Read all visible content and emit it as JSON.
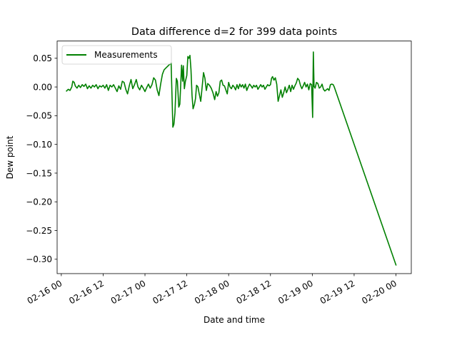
{
  "chart_data": {
    "type": "line",
    "title": "Data difference d=2 for 399 data points",
    "xlabel": "Date and time",
    "ylabel": "Dew point",
    "legend": {
      "placement": "top-left",
      "entries": [
        "Measurements"
      ]
    },
    "grid": false,
    "x_unit": "hours",
    "xlim": [
      -1.2,
      100.4
    ],
    "ylim": [
      -0.325,
      0.08
    ],
    "x_ticks": [
      {
        "value": 0,
        "label": "02-16 00"
      },
      {
        "value": 12,
        "label": "02-16 12"
      },
      {
        "value": 24,
        "label": "02-17 00"
      },
      {
        "value": 36,
        "label": "02-17 12"
      },
      {
        "value": 48,
        "label": "02-18 00"
      },
      {
        "value": 60,
        "label": "02-18 12"
      },
      {
        "value": 72,
        "label": "02-19 00"
      },
      {
        "value": 84,
        "label": "02-19 12"
      },
      {
        "value": 96,
        "label": "02-20 00"
      }
    ],
    "y_ticks": [
      {
        "value": 0.05,
        "label": "0.05"
      },
      {
        "value": 0.0,
        "label": "0.00"
      },
      {
        "value": -0.05,
        "label": "−0.05"
      },
      {
        "value": -0.1,
        "label": "−0.10"
      },
      {
        "value": -0.15,
        "label": "−0.15"
      },
      {
        "value": -0.2,
        "label": "−0.20"
      },
      {
        "value": -0.25,
        "label": "−0.25"
      },
      {
        "value": -0.3,
        "label": "−0.30"
      }
    ],
    "series": [
      {
        "name": "Measurements",
        "color": "#008000",
        "points": [
          [
            1.5,
            -0.007
          ],
          [
            2.0,
            -0.004
          ],
          [
            2.5,
            -0.006
          ],
          [
            3.0,
            0.0
          ],
          [
            3.3,
            0.01
          ],
          [
            3.7,
            0.008
          ],
          [
            4.0,
            0.002
          ],
          [
            4.5,
            -0.002
          ],
          [
            5.0,
            0.003
          ],
          [
            5.5,
            -0.001
          ],
          [
            6.0,
            0.004
          ],
          [
            6.5,
            0.001
          ],
          [
            7.0,
            0.005
          ],
          [
            7.5,
            -0.003
          ],
          [
            8.0,
            0.002
          ],
          [
            8.5,
            -0.002
          ],
          [
            9.0,
            0.003
          ],
          [
            9.5,
            0.0
          ],
          [
            10.0,
            0.004
          ],
          [
            10.5,
            -0.003
          ],
          [
            11.0,
            0.002
          ],
          [
            11.5,
            0.0
          ],
          [
            12.0,
            0.003
          ],
          [
            12.5,
            -0.002
          ],
          [
            13.0,
            0.004
          ],
          [
            13.5,
            -0.006
          ],
          [
            14.0,
            0.003
          ],
          [
            14.5,
            0.0
          ],
          [
            15.0,
            0.004
          ],
          [
            15.5,
            -0.002
          ],
          [
            16.0,
            -0.008
          ],
          [
            16.5,
            0.002
          ],
          [
            17.0,
            -0.004
          ],
          [
            17.5,
            0.01
          ],
          [
            18.0,
            0.008
          ],
          [
            18.5,
            -0.004
          ],
          [
            19.0,
            -0.012
          ],
          [
            19.5,
            0.002
          ],
          [
            20.0,
            0.013
          ],
          [
            20.5,
            -0.003
          ],
          [
            21.0,
            0.004
          ],
          [
            21.5,
            0.013
          ],
          [
            22.0,
            0.0
          ],
          [
            22.5,
            -0.005
          ],
          [
            23.0,
            0.003
          ],
          [
            23.5,
            -0.002
          ],
          [
            24.0,
            -0.008
          ],
          [
            24.5,
            -0.001
          ],
          [
            25.0,
            0.005
          ],
          [
            25.5,
            -0.002
          ],
          [
            26.0,
            0.004
          ],
          [
            26.5,
            0.016
          ],
          [
            27.0,
            0.012
          ],
          [
            27.5,
            -0.005
          ],
          [
            28.0,
            -0.015
          ],
          [
            28.5,
            0.005
          ],
          [
            29.0,
            0.022
          ],
          [
            29.5,
            0.03
          ],
          [
            30.0,
            0.033
          ],
          [
            30.5,
            0.036
          ],
          [
            31.0,
            0.039
          ],
          [
            31.5,
            0.042
          ],
          [
            32.0,
            -0.07
          ],
          [
            32.3,
            -0.065
          ],
          [
            32.6,
            -0.045
          ],
          [
            33.0,
            0.015
          ],
          [
            33.3,
            0.01
          ],
          [
            33.7,
            -0.035
          ],
          [
            34.0,
            -0.03
          ],
          [
            34.2,
            -0.003
          ],
          [
            34.5,
            0.038
          ],
          [
            34.8,
            0.01
          ],
          [
            35.0,
            0.037
          ],
          [
            35.3,
            -0.003
          ],
          [
            35.6,
            0.01
          ],
          [
            36.0,
            0.02
          ],
          [
            36.3,
            0.053
          ],
          [
            36.6,
            0.05
          ],
          [
            36.9,
            0.055
          ],
          [
            37.2,
            0.03
          ],
          [
            37.5,
            -0.015
          ],
          [
            37.8,
            -0.038
          ],
          [
            38.2,
            -0.03
          ],
          [
            38.5,
            -0.02
          ],
          [
            38.8,
            0.003
          ],
          [
            39.2,
            0.0
          ],
          [
            39.5,
            -0.01
          ],
          [
            40.0,
            -0.025
          ],
          [
            40.4,
            0.0
          ],
          [
            40.8,
            0.025
          ],
          [
            41.2,
            0.015
          ],
          [
            41.6,
            -0.006
          ],
          [
            42.0,
            0.006
          ],
          [
            42.5,
            0.003
          ],
          [
            43.0,
            -0.002
          ],
          [
            43.5,
            -0.01
          ],
          [
            44.0,
            -0.022
          ],
          [
            44.4,
            -0.008
          ],
          [
            44.8,
            -0.016
          ],
          [
            45.2,
            -0.01
          ],
          [
            45.6,
            0.01
          ],
          [
            46.0,
            0.012
          ],
          [
            46.4,
            0.003
          ],
          [
            46.8,
            0.002
          ],
          [
            47.2,
            -0.005
          ],
          [
            47.6,
            -0.012
          ],
          [
            48.0,
            0.008
          ],
          [
            48.4,
            0.0
          ],
          [
            48.8,
            -0.003
          ],
          [
            49.2,
            0.003
          ],
          [
            49.6,
            0.0
          ],
          [
            50.0,
            -0.005
          ],
          [
            50.4,
            0.004
          ],
          [
            50.8,
            -0.003
          ],
          [
            51.2,
            0.005
          ],
          [
            51.6,
            0.0
          ],
          [
            52.0,
            0.004
          ],
          [
            52.4,
            -0.002
          ],
          [
            52.8,
            0.005
          ],
          [
            53.2,
            -0.006
          ],
          [
            53.6,
            0.0
          ],
          [
            54.0,
            0.005
          ],
          [
            54.4,
            0.002
          ],
          [
            54.8,
            -0.002
          ],
          [
            55.2,
            0.003
          ],
          [
            55.6,
            0.0
          ],
          [
            56.0,
            0.003
          ],
          [
            56.4,
            -0.004
          ],
          [
            56.8,
            0.0
          ],
          [
            57.2,
            0.004
          ],
          [
            57.6,
            0.0
          ],
          [
            58.0,
            0.003
          ],
          [
            58.4,
            -0.004
          ],
          [
            58.8,
            0.0
          ],
          [
            59.2,
            0.004
          ],
          [
            59.6,
            0.002
          ],
          [
            60.0,
            0.004
          ],
          [
            60.3,
            0.015
          ],
          [
            60.6,
            0.018
          ],
          [
            61.0,
            0.012
          ],
          [
            61.4,
            0.016
          ],
          [
            61.8,
            0.005
          ],
          [
            62.2,
            -0.025
          ],
          [
            62.6,
            -0.015
          ],
          [
            63.0,
            -0.005
          ],
          [
            63.4,
            -0.018
          ],
          [
            63.8,
            -0.01
          ],
          [
            64.2,
            0.0
          ],
          [
            64.6,
            -0.01
          ],
          [
            65.0,
            -0.004
          ],
          [
            65.4,
            0.003
          ],
          [
            65.8,
            -0.008
          ],
          [
            66.2,
            0.003
          ],
          [
            66.6,
            -0.004
          ],
          [
            67.0,
            0.002
          ],
          [
            67.4,
            0.007
          ],
          [
            67.8,
            0.015
          ],
          [
            68.2,
            0.012
          ],
          [
            68.6,
            0.003
          ],
          [
            69.0,
            -0.003
          ],
          [
            69.4,
            0.002
          ],
          [
            69.8,
            0.008
          ],
          [
            70.2,
            0.0
          ],
          [
            70.6,
            0.005
          ],
          [
            71.0,
            -0.005
          ],
          [
            71.4,
            0.006
          ],
          [
            71.8,
            0.004
          ],
          [
            72.1,
            -0.053
          ],
          [
            72.3,
            0.061
          ],
          [
            72.5,
            0.001
          ],
          [
            72.8,
            -0.002
          ],
          [
            73.2,
            0.008
          ],
          [
            73.6,
            0.006
          ],
          [
            74.0,
            -0.002
          ],
          [
            74.4,
            0.0
          ],
          [
            74.8,
            0.005
          ],
          [
            75.2,
            -0.004
          ],
          [
            75.6,
            -0.007
          ],
          [
            76.0,
            -0.005
          ],
          [
            76.4,
            -0.003
          ],
          [
            76.8,
            -0.006
          ],
          [
            77.2,
            0.004
          ],
          [
            77.6,
            0.005
          ],
          [
            78.0,
            0.004
          ],
          [
            78.3,
            0.0
          ],
          [
            96.0,
            -0.31
          ]
        ]
      }
    ]
  }
}
